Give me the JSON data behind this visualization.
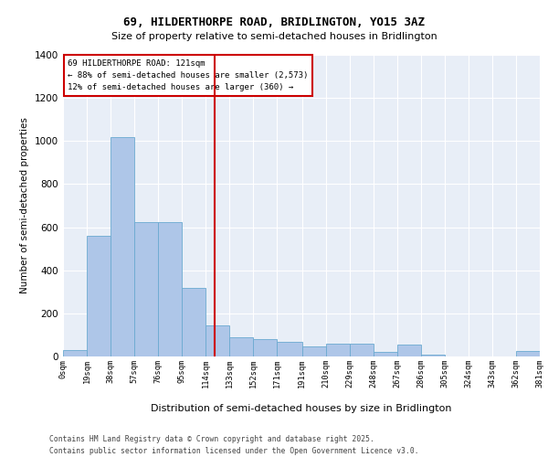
{
  "title": "69, HILDERTHORPE ROAD, BRIDLINGTON, YO15 3AZ",
  "subtitle": "Size of property relative to semi-detached houses in Bridlington",
  "xlabel": "Distribution of semi-detached houses by size in Bridlington",
  "ylabel": "Number of semi-detached properties",
  "property_size": 121,
  "annotation_line1": "69 HILDERTHORPE ROAD: 121sqm",
  "annotation_line2": "← 88% of semi-detached houses are smaller (2,573)",
  "annotation_line3": "12% of semi-detached houses are larger (360) →",
  "bar_edges": [
    0,
    19,
    38,
    57,
    76,
    95,
    114,
    133,
    152,
    171,
    191,
    210,
    229,
    248,
    267,
    286,
    305,
    324,
    343,
    362,
    381
  ],
  "bar_heights": [
    30,
    560,
    1020,
    625,
    625,
    320,
    145,
    90,
    80,
    70,
    45,
    60,
    60,
    20,
    55,
    10,
    0,
    0,
    0,
    25
  ],
  "tick_labels": [
    "0sqm",
    "19sqm",
    "38sqm",
    "57sqm",
    "76sqm",
    "95sqm",
    "114sqm",
    "133sqm",
    "152sqm",
    "171sqm",
    "191sqm",
    "210sqm",
    "229sqm",
    "248sqm",
    "267sqm",
    "286sqm",
    "305sqm",
    "324sqm",
    "343sqm",
    "362sqm",
    "381sqm"
  ],
  "bar_color": "#aec6e8",
  "bar_edge_color": "#6baad0",
  "bg_color": "#e8eef7",
  "grid_color": "#ffffff",
  "vline_color": "#cc0000",
  "ylim": [
    0,
    1400
  ],
  "yticks": [
    0,
    200,
    400,
    600,
    800,
    1000,
    1200,
    1400
  ],
  "footer_line1": "Contains HM Land Registry data © Crown copyright and database right 2025.",
  "footer_line2": "Contains public sector information licensed under the Open Government Licence v3.0."
}
